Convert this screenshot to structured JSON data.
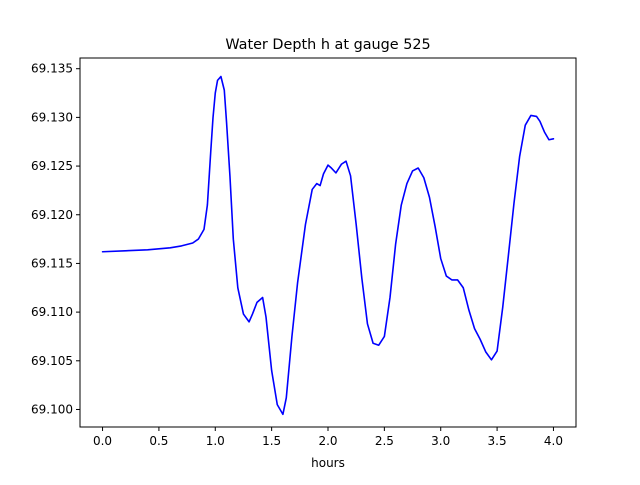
{
  "chart_data": {
    "type": "line",
    "title": "Water Depth h at gauge 525",
    "xlabel": "hours",
    "ylabel": "",
    "xlim": [
      -0.2,
      4.2
    ],
    "ylim": [
      69.0982,
      69.1361
    ],
    "x_ticks": [
      0.0,
      0.5,
      1.0,
      1.5,
      2.0,
      2.5,
      3.0,
      3.5,
      4.0
    ],
    "x_tick_labels": [
      "0.0",
      "0.5",
      "1.0",
      "1.5",
      "2.0",
      "2.5",
      "3.0",
      "3.5",
      "4.0"
    ],
    "y_ticks": [
      69.1,
      69.105,
      69.11,
      69.115,
      69.12,
      69.125,
      69.13,
      69.135
    ],
    "y_tick_labels": [
      "69.100",
      "69.105",
      "69.110",
      "69.115",
      "69.120",
      "69.125",
      "69.130",
      "69.135"
    ],
    "grid": false,
    "legend": "none",
    "series": [
      {
        "color": "#0000ff",
        "x": [
          0.0,
          0.2,
          0.4,
          0.6,
          0.7,
          0.8,
          0.85,
          0.9,
          0.93,
          0.96,
          0.98,
          1.0,
          1.02,
          1.05,
          1.08,
          1.1,
          1.13,
          1.16,
          1.2,
          1.25,
          1.3,
          1.33,
          1.37,
          1.42,
          1.45,
          1.5,
          1.55,
          1.6,
          1.63,
          1.68,
          1.73,
          1.8,
          1.86,
          1.9,
          1.93,
          1.96,
          2.0,
          2.03,
          2.07,
          2.12,
          2.16,
          2.2,
          2.25,
          2.3,
          2.35,
          2.4,
          2.45,
          2.5,
          2.55,
          2.6,
          2.65,
          2.7,
          2.75,
          2.8,
          2.85,
          2.9,
          2.95,
          3.0,
          3.05,
          3.1,
          3.15,
          3.2,
          3.25,
          3.3,
          3.35,
          3.4,
          3.45,
          3.5,
          3.55,
          3.6,
          3.65,
          3.7,
          3.75,
          3.8,
          3.85,
          3.88,
          3.92,
          3.96,
          4.0
        ],
        "y": [
          69.1162,
          69.1163,
          69.1164,
          69.1166,
          69.1168,
          69.1171,
          69.1175,
          69.1185,
          69.121,
          69.1265,
          69.13,
          69.1325,
          69.1338,
          69.1342,
          69.1328,
          69.1295,
          69.124,
          69.1175,
          69.1125,
          69.1098,
          69.109,
          69.1098,
          69.111,
          69.1115,
          69.1095,
          69.104,
          69.1005,
          69.0995,
          69.1012,
          69.1075,
          69.113,
          69.119,
          69.1226,
          69.1232,
          69.123,
          69.1242,
          69.1251,
          69.1248,
          69.1243,
          69.1252,
          69.1255,
          69.124,
          69.119,
          69.1135,
          69.1088,
          69.1068,
          69.1066,
          69.1075,
          69.1115,
          69.117,
          69.121,
          69.1232,
          69.1245,
          69.1248,
          69.1238,
          69.1218,
          69.1188,
          69.1155,
          69.1137,
          69.1133,
          69.1133,
          69.1125,
          69.1102,
          69.1083,
          69.1072,
          69.1059,
          69.1051,
          69.106,
          69.1105,
          69.1158,
          69.1212,
          69.126,
          69.1292,
          69.1302,
          69.1301,
          69.1296,
          69.1285,
          69.1277,
          69.1278
        ]
      }
    ]
  }
}
